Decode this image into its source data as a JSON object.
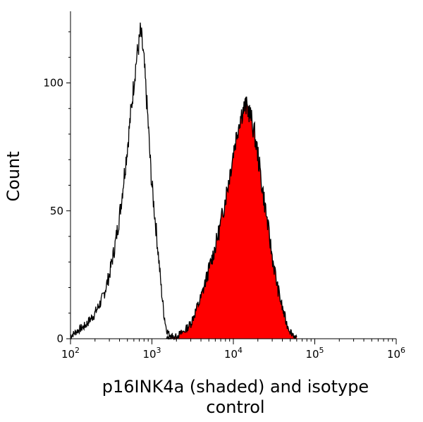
{
  "chart_data": {
    "type": "area",
    "xlabel_line1": "p16INK4a (shaded) and isotype",
    "xlabel_line2": "control",
    "ylabel": "Count",
    "xscale": "log",
    "xlim": [
      100,
      1000000
    ],
    "ylim": [
      0,
      128
    ],
    "grid": false,
    "x_ticks": [
      {
        "value": 100,
        "base": "10",
        "exp": "2"
      },
      {
        "value": 1000,
        "base": "10",
        "exp": "3"
      },
      {
        "value": 10000,
        "base": "10",
        "exp": "4"
      },
      {
        "value": 100000,
        "base": "10",
        "exp": "5"
      },
      {
        "value": 1000000,
        "base": "10",
        "exp": "6"
      }
    ],
    "y_ticks": [
      0,
      50,
      100
    ],
    "series": [
      {
        "id": "isotype",
        "style": "outline",
        "color": "#000000",
        "x": [
          100,
          120,
          150,
          180,
          200,
          250,
          300,
          350,
          400,
          450,
          500,
          550,
          600,
          650,
          700,
          720,
          750,
          800,
          850,
          900,
          950,
          1000,
          1100,
          1200,
          1300,
          1400,
          1500,
          1600,
          1800,
          2000,
          2200
        ],
        "y": [
          1,
          3,
          5,
          8,
          10,
          16,
          25,
          36,
          48,
          62,
          75,
          88,
          100,
          110,
          116,
          120,
          117,
          108,
          96,
          84,
          70,
          60,
          46,
          33,
          20,
          10,
          4,
          2,
          1,
          0,
          0
        ]
      },
      {
        "id": "p16INK4a",
        "style": "filled",
        "color": "#ff0000",
        "x": [
          1500,
          2000,
          2500,
          3000,
          4000,
          5000,
          6000,
          7000,
          8000,
          9000,
          10000,
          11000,
          12000,
          13000,
          14000,
          15000,
          16000,
          18000,
          20000,
          22000,
          25000,
          30000,
          35000,
          40000,
          45000,
          50000,
          60000
        ],
        "y": [
          0,
          1,
          3,
          6,
          16,
          27,
          36,
          45,
          55,
          64,
          73,
          80,
          86,
          89,
          91,
          90,
          88,
          81,
          72,
          62,
          50,
          32,
          20,
          12,
          6,
          3,
          0
        ]
      }
    ]
  }
}
